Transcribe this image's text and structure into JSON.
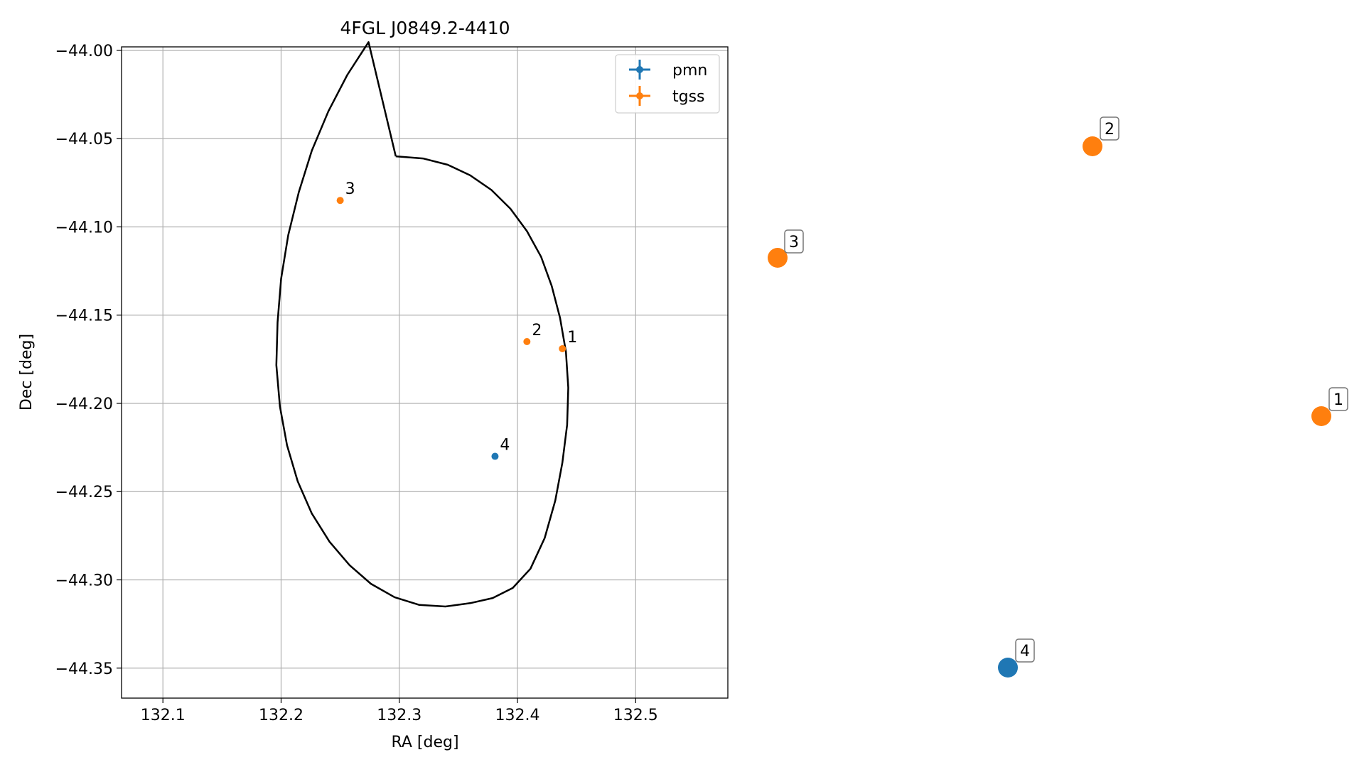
{
  "chart_data": [
    {
      "type": "scatter",
      "title": "4FGL J0849.2-4410",
      "xlabel": "RA [deg]",
      "ylabel": "Dec [deg]",
      "xlim": [
        132.065,
        132.578
      ],
      "ylim": [
        -44.367,
        -43.998
      ],
      "x_ticks": [
        132.1,
        132.2,
        132.3,
        132.4,
        132.5
      ],
      "x_tick_labels": [
        "132.1",
        "132.2",
        "132.3",
        "132.4",
        "132.5"
      ],
      "y_ticks": [
        -44.0,
        -44.05,
        -44.1,
        -44.15,
        -44.2,
        -44.25,
        -44.3,
        -44.35
      ],
      "y_tick_labels": [
        "−44.00",
        "−44.05",
        "−44.10",
        "−44.15",
        "−44.20",
        "−44.25",
        "−44.30",
        "−44.35"
      ],
      "grid": true,
      "legend_position": "top-right",
      "series": [
        {
          "name": "pmn",
          "color": "#1f77b4",
          "points": [
            {
              "label": "4",
              "x": 132.381,
              "y": -44.23
            }
          ]
        },
        {
          "name": "tgss",
          "color": "#ff7f0e",
          "points": [
            {
              "label": "1",
              "x": 132.438,
              "y": -44.169
            },
            {
              "label": "2",
              "x": 132.408,
              "y": -44.165
            },
            {
              "label": "3",
              "x": 132.25,
              "y": -44.085
            }
          ]
        }
      ],
      "ellipse": {
        "color": "#000000",
        "points": [
          [
            132.297,
            -44.06
          ],
          [
            132.32,
            -44.0612
          ],
          [
            132.341,
            -44.0648
          ],
          [
            132.36,
            -44.0708
          ],
          [
            132.378,
            -44.0791
          ],
          [
            132.394,
            -44.0897
          ],
          [
            132.408,
            -44.1024
          ],
          [
            132.42,
            -44.117
          ],
          [
            132.429,
            -44.1335
          ],
          [
            132.436,
            -44.1515
          ],
          [
            132.441,
            -44.1708
          ],
          [
            132.443,
            -44.1911
          ],
          [
            132.442,
            -44.2121
          ],
          [
            132.438,
            -44.2336
          ],
          [
            132.432,
            -44.2551
          ],
          [
            132.423,
            -44.2763
          ],
          [
            132.411,
            -44.2937
          ],
          [
            132.396,
            -44.3046
          ],
          [
            132.379,
            -44.3103
          ],
          [
            132.36,
            -44.3132
          ],
          [
            132.339,
            -44.3151
          ],
          [
            132.317,
            -44.3142
          ],
          [
            132.296,
            -44.3098
          ],
          [
            132.276,
            -44.3022
          ],
          [
            132.258,
            -44.2917
          ],
          [
            132.241,
            -44.2784
          ],
          [
            132.226,
            -44.2624
          ],
          [
            132.214,
            -44.2441
          ],
          [
            132.205,
            -44.2237
          ],
          [
            132.199,
            -44.2017
          ],
          [
            132.196,
            -44.1783
          ],
          [
            132.197,
            -44.1541
          ],
          [
            132.2,
            -44.1294
          ],
          [
            132.206,
            -44.1047
          ],
          [
            132.215,
            -44.0803
          ],
          [
            132.226,
            -44.0568
          ],
          [
            132.24,
            -44.0345
          ],
          [
            132.256,
            -44.0139
          ],
          [
            132.274,
            -43.9953
          ],
          [
            132.297,
            -44.06
          ]
        ]
      }
    },
    {
      "type": "scatter",
      "title": "",
      "axes_visible": false,
      "series": [
        {
          "name": "pmn",
          "color": "#1f77b4",
          "points": [
            {
              "label": "4"
            }
          ]
        },
        {
          "name": "tgss",
          "color": "#ff7f0e",
          "points": [
            {
              "label": "1"
            },
            {
              "label": "2"
            },
            {
              "label": "3"
            }
          ]
        }
      ]
    }
  ]
}
